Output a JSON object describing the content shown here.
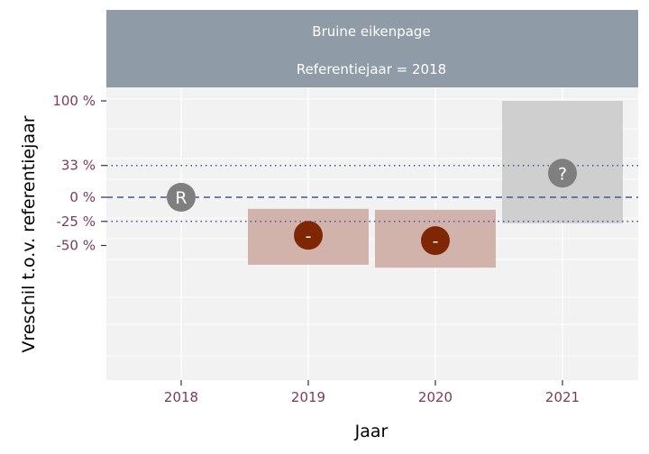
{
  "chart_data": {
    "type": "point-interval",
    "strip": {
      "species": "Bruine eikenpage",
      "reference": "Referentiejaar = 2018"
    },
    "xlabel": "Jaar",
    "ylabel": "Vreschil t.o.v. referentiejaar",
    "categories": [
      "2018",
      "2019",
      "2020",
      "2021"
    ],
    "y_ticks": [
      {
        "value": 100,
        "label": "100 %"
      },
      {
        "value": 33,
        "label": "33 %"
      },
      {
        "value": 0,
        "label": "0 %"
      },
      {
        "value": -25,
        "label": "-25 %"
      },
      {
        "value": -50,
        "label": "-50 %"
      }
    ],
    "reference_lines": {
      "dashed": 0,
      "dotted": [
        33,
        -25
      ]
    },
    "points": [
      {
        "year": "2018",
        "estimate": 0,
        "lower": null,
        "upper": null,
        "symbol": "R",
        "color": "#7f7f7f"
      },
      {
        "year": "2019",
        "estimate": -39.5,
        "lower": -70,
        "upper": -12,
        "symbol": "-",
        "color": "#7f2704"
      },
      {
        "year": "2020",
        "estimate": -45,
        "lower": -73,
        "upper": -13,
        "symbol": "-",
        "color": "#7f2704"
      },
      {
        "year": "2021",
        "estimate": 25,
        "lower": -27,
        "upper": 100,
        "symbol": "?",
        "color": "#7f7f7f"
      }
    ],
    "colors": {
      "panel_background": "#f2f2f2",
      "strip_background": "#8f9ba6",
      "decline_band": "#d1b3ab",
      "unknown_band": "#cfcfcf",
      "reference_line": "#3d5a9c",
      "tick_label": "#7b3b5a"
    },
    "grid": true
  }
}
